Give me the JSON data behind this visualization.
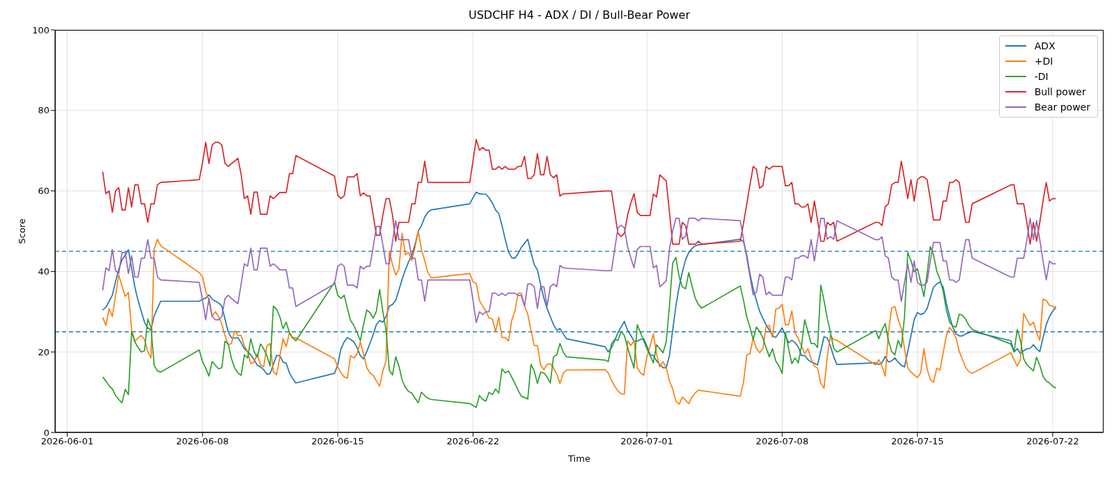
{
  "chart_data": {
    "type": "line",
    "title": "USDCHF H4 - ADX / DI / Bull-Bear Power",
    "xlabel": "Time",
    "ylabel": "Score",
    "x": [
      "2026-06-02T20:00",
      "2026-06-03T00:00",
      "2026-06-03T04:00",
      "2026-06-03T08:00",
      "2026-06-03T12:00",
      "2026-06-03T16:00",
      "2026-06-03T20:00",
      "2026-06-04T00:00",
      "2026-06-04T04:00",
      "2026-06-04T08:00",
      "2026-06-04T12:00",
      "2026-06-04T16:00",
      "2026-06-04T20:00",
      "2026-06-05T00:00",
      "2026-06-05T04:00",
      "2026-06-05T08:00",
      "2026-06-05T12:00",
      "2026-06-05T16:00",
      "2026-06-05T20:00",
      "2026-06-07T20:00",
      "2026-06-08T00:00",
      "2026-06-08T04:00",
      "2026-06-08T08:00",
      "2026-06-08T12:00",
      "2026-06-08T16:00",
      "2026-06-08T20:00",
      "2026-06-09T00:00",
      "2026-06-09T04:00",
      "2026-06-09T08:00",
      "2026-06-09T12:00",
      "2026-06-09T16:00",
      "2026-06-09T20:00",
      "2026-06-10T00:00",
      "2026-06-10T04:00",
      "2026-06-10T08:00",
      "2026-06-10T12:00",
      "2026-06-10T16:00",
      "2026-06-10T20:00",
      "2026-06-11T00:00",
      "2026-06-11T04:00",
      "2026-06-11T08:00",
      "2026-06-11T12:00",
      "2026-06-11T16:00",
      "2026-06-11T20:00",
      "2026-06-12T00:00",
      "2026-06-12T04:00",
      "2026-06-12T08:00",
      "2026-06-12T12:00",
      "2026-06-12T16:00",
      "2026-06-12T20:00",
      "2026-06-14T20:00",
      "2026-06-15T00:00",
      "2026-06-15T04:00",
      "2026-06-15T08:00",
      "2026-06-15T12:00",
      "2026-06-15T16:00",
      "2026-06-15T20:00",
      "2026-06-16T00:00",
      "2026-06-16T04:00",
      "2026-06-16T08:00",
      "2026-06-16T12:00",
      "2026-06-16T16:00",
      "2026-06-16T20:00",
      "2026-06-17T00:00",
      "2026-06-17T04:00",
      "2026-06-17T08:00",
      "2026-06-17T12:00",
      "2026-06-17T16:00",
      "2026-06-17T20:00",
      "2026-06-18T00:00",
      "2026-06-18T04:00",
      "2026-06-18T08:00",
      "2026-06-18T12:00",
      "2026-06-18T16:00",
      "2026-06-18T20:00",
      "2026-06-19T00:00",
      "2026-06-19T04:00",
      "2026-06-19T08:00",
      "2026-06-19T12:00",
      "2026-06-19T16:00",
      "2026-06-19T20:00",
      "2026-06-21T20:00",
      "2026-06-22T00:00",
      "2026-06-22T04:00",
      "2026-06-22T08:00",
      "2026-06-22T12:00",
      "2026-06-22T16:00",
      "2026-06-22T20:00",
      "2026-06-23T00:00",
      "2026-06-23T04:00",
      "2026-06-23T08:00",
      "2026-06-23T12:00",
      "2026-06-23T16:00",
      "2026-06-23T20:00",
      "2026-06-24T00:00",
      "2026-06-24T04:00",
      "2026-06-24T08:00",
      "2026-06-24T12:00",
      "2026-06-24T16:00",
      "2026-06-24T20:00",
      "2026-06-25T00:00",
      "2026-06-25T04:00",
      "2026-06-25T08:00",
      "2026-06-25T12:00",
      "2026-06-25T16:00",
      "2026-06-25T20:00",
      "2026-06-26T00:00",
      "2026-06-26T04:00",
      "2026-06-26T08:00",
      "2026-06-26T12:00",
      "2026-06-26T16:00",
      "2026-06-26T20:00",
      "2026-06-28T20:00",
      "2026-06-29T00:00",
      "2026-06-29T04:00",
      "2026-06-29T08:00",
      "2026-06-29T12:00",
      "2026-06-29T16:00",
      "2026-06-29T20:00",
      "2026-06-30T00:00",
      "2026-06-30T04:00",
      "2026-06-30T08:00",
      "2026-06-30T12:00",
      "2026-06-30T16:00",
      "2026-06-30T20:00",
      "2026-07-01T00:00",
      "2026-07-01T04:00",
      "2026-07-01T08:00",
      "2026-07-01T12:00",
      "2026-07-01T16:00",
      "2026-07-01T20:00",
      "2026-07-02T00:00",
      "2026-07-02T04:00",
      "2026-07-02T08:00",
      "2026-07-02T12:00",
      "2026-07-02T16:00",
      "2026-07-02T20:00",
      "2026-07-03T00:00",
      "2026-07-03T04:00",
      "2026-07-03T08:00",
      "2026-07-03T12:00",
      "2026-07-03T16:00",
      "2026-07-03T20:00",
      "2026-07-05T20:00",
      "2026-07-06T00:00",
      "2026-07-06T04:00",
      "2026-07-06T08:00",
      "2026-07-06T12:00",
      "2026-07-06T16:00",
      "2026-07-06T20:00",
      "2026-07-07T00:00",
      "2026-07-07T04:00",
      "2026-07-07T08:00",
      "2026-07-07T12:00",
      "2026-07-07T16:00",
      "2026-07-07T20:00",
      "2026-07-08T00:00",
      "2026-07-08T04:00",
      "2026-07-08T08:00",
      "2026-07-08T12:00",
      "2026-07-08T16:00",
      "2026-07-08T20:00",
      "2026-07-09T00:00",
      "2026-07-09T04:00",
      "2026-07-09T08:00",
      "2026-07-09T12:00",
      "2026-07-09T16:00",
      "2026-07-09T20:00",
      "2026-07-10T00:00",
      "2026-07-10T04:00",
      "2026-07-10T08:00",
      "2026-07-10T12:00",
      "2026-07-10T16:00",
      "2026-07-10T20:00",
      "2026-07-12T20:00",
      "2026-07-13T00:00",
      "2026-07-13T04:00",
      "2026-07-13T08:00",
      "2026-07-13T12:00",
      "2026-07-13T16:00",
      "2026-07-13T20:00",
      "2026-07-14T00:00",
      "2026-07-14T04:00",
      "2026-07-14T08:00",
      "2026-07-14T12:00",
      "2026-07-14T16:00",
      "2026-07-14T20:00",
      "2026-07-15T00:00",
      "2026-07-15T04:00",
      "2026-07-15T08:00",
      "2026-07-15T12:00",
      "2026-07-15T16:00",
      "2026-07-15T20:00",
      "2026-07-16T00:00",
      "2026-07-16T04:00",
      "2026-07-16T08:00",
      "2026-07-16T12:00",
      "2026-07-16T16:00",
      "2026-07-16T20:00",
      "2026-07-17T00:00",
      "2026-07-17T04:00",
      "2026-07-17T08:00",
      "2026-07-17T12:00",
      "2026-07-17T16:00",
      "2026-07-17T20:00",
      "2026-07-19T20:00",
      "2026-07-20T00:00",
      "2026-07-20T04:00",
      "2026-07-20T08:00",
      "2026-07-20T12:00",
      "2026-07-20T16:00",
      "2026-07-20T20:00",
      "2026-07-21T00:00",
      "2026-07-21T04:00",
      "2026-07-21T08:00",
      "2026-07-21T12:00",
      "2026-07-21T16:00",
      "2026-07-21T20:00",
      "2026-07-22T00:00",
      "2026-07-22T04:00"
    ],
    "series": [
      {
        "name": "ADX",
        "color": "#1f77b4",
        "values": [
          30.4,
          31.1,
          32.6,
          34.1,
          37.5,
          40.5,
          42.9,
          44.0,
          45.4,
          40.7,
          36.1,
          32.8,
          30.0,
          27.4,
          26.0,
          25.4,
          29.0,
          30.8,
          32.6,
          32.6,
          33.1,
          33.4,
          34.2,
          33.1,
          32.6,
          32.2,
          31.4,
          28.1,
          24.9,
          23.5,
          23.4,
          23.6,
          22.3,
          20.8,
          20.0,
          19.3,
          18.1,
          16.7,
          16.3,
          15.6,
          14.5,
          14.6,
          16.9,
          19.1,
          19.1,
          17.5,
          17.2,
          14.8,
          13.4,
          12.3,
          14.7,
          16.8,
          20.8,
          22.5,
          23.6,
          23.1,
          22.5,
          21.1,
          19.1,
          18.3,
          20.1,
          22.1,
          24.3,
          26.8,
          27.8,
          27.4,
          28.8,
          31.4,
          31.8,
          32.8,
          35.4,
          38.1,
          40.4,
          42.4,
          44.1,
          46.7,
          50.0,
          51.4,
          53.5,
          54.7,
          55.3,
          56.8,
          58.3,
          59.7,
          59.3,
          59.2,
          59.2,
          58.3,
          57.0,
          55.3,
          54.4,
          51.4,
          48.0,
          44.9,
          43.4,
          43.3,
          44.4,
          46.0,
          47.0,
          48.0,
          44.7,
          41.7,
          40.4,
          36.7,
          33.4,
          30.8,
          28.8,
          26.8,
          25.4,
          25.8,
          24.5,
          23.3,
          21.3,
          20.0,
          21.1,
          22.8,
          24.8,
          26.2,
          27.6,
          25.4,
          24.1,
          22.7,
          22.7,
          23.1,
          23.3,
          21.5,
          19.3,
          19.1,
          17.8,
          16.9,
          16.1,
          16.1,
          19.1,
          25.4,
          31.4,
          36.1,
          39.9,
          42.9,
          44.7,
          45.7,
          46.4,
          46.6,
          46.7,
          48.0,
          47.4,
          44.1,
          39.4,
          35.7,
          32.8,
          30.1,
          28.4,
          26.8,
          25.4,
          24.1,
          23.6,
          24.8,
          26.0,
          24.1,
          22.3,
          22.9,
          22.3,
          21.3,
          19.1,
          19.1,
          18.1,
          17.5,
          17.2,
          16.8,
          20.3,
          23.8,
          23.5,
          21.5,
          18.8,
          16.9,
          17.3,
          16.9,
          17.3,
          18.9,
          17.5,
          17.8,
          18.5,
          17.5,
          16.7,
          16.3,
          20.1,
          24.1,
          28.1,
          29.8,
          29.3,
          29.6,
          30.8,
          33.4,
          36.1,
          36.9,
          37.4,
          36.1,
          32.1,
          28.8,
          26.1,
          24.5,
          24.0,
          24.0,
          24.5,
          24.8,
          25.1,
          22.8,
          20.0,
          20.8,
          19.6,
          20.3,
          20.8,
          20.9,
          21.8,
          20.8,
          20.1,
          23.5,
          26.8,
          28.8,
          30.1,
          31.3
        ]
      },
      {
        "name": "+DI",
        "color": "#ff7f0e",
        "values": [
          28.6,
          26.6,
          30.8,
          28.8,
          34.1,
          39.1,
          36.4,
          33.8,
          34.8,
          25.4,
          22.7,
          23.5,
          24.1,
          23.1,
          20.1,
          18.5,
          45.5,
          48.0,
          46.4,
          39.7,
          38.7,
          35.1,
          32.8,
          28.8,
          30.0,
          28.8,
          26.9,
          24.1,
          21.8,
          22.1,
          25.3,
          24.1,
          24.1,
          21.5,
          20.1,
          17.1,
          17.5,
          19.5,
          16.8,
          16.3,
          21.5,
          22.1,
          15.1,
          14.3,
          18.7,
          23.3,
          21.3,
          24.8,
          23.5,
          23.5,
          18.3,
          16.3,
          14.8,
          13.8,
          13.5,
          19.1,
          18.5,
          19.5,
          22.5,
          19.5,
          16.1,
          14.8,
          14.2,
          12.8,
          11.5,
          15.3,
          17.8,
          45.0,
          41.7,
          39.1,
          40.7,
          49.5,
          44.2,
          44.7,
          42.7,
          46.0,
          50.0,
          45.4,
          42.7,
          39.7,
          38.4,
          39.5,
          37.4,
          37.1,
          32.8,
          31.4,
          30.1,
          28.4,
          28.2,
          25.1,
          28.6,
          23.6,
          23.6,
          22.7,
          27.8,
          30.1,
          34.6,
          34.6,
          31.4,
          29.4,
          25.4,
          21.6,
          21.6,
          16.8,
          15.6,
          16.9,
          17.1,
          16.1,
          14.5,
          12.2,
          14.7,
          15.5,
          15.6,
          14.8,
          13.0,
          11.5,
          10.3,
          9.6,
          9.5,
          22.8,
          21.6,
          22.8,
          16.1,
          14.8,
          14.2,
          18.8,
          21.5,
          24.5,
          19.5,
          16.3,
          17.6,
          16.1,
          12.8,
          10.8,
          7.8,
          7.0,
          8.8,
          8.0,
          7.2,
          8.8,
          9.8,
          10.5,
          10.4,
          9.0,
          12.5,
          19.3,
          19.6,
          23.5,
          20.9,
          19.8,
          20.8,
          26.4,
          26.6,
          23.6,
          30.6,
          30.9,
          31.8,
          26.8,
          26.8,
          30.2,
          24.8,
          23.3,
          21.5,
          19.6,
          20.8,
          18.3,
          16.5,
          16.0,
          12.2,
          11.0,
          18.7,
          24.1,
          23.1,
          22.9,
          16.8,
          18.1,
          16.5,
          14.0,
          24.8,
          30.9,
          31.3,
          28.1,
          25.8,
          20.9,
          16.1,
          15.0,
          14.3,
          13.6,
          14.8,
          20.8,
          15.8,
          13.2,
          12.5,
          16.0,
          15.5,
          19.8,
          24.1,
          26.1,
          25.1,
          23.5,
          20.1,
          18.1,
          16.1,
          15.1,
          14.7,
          19.8,
          18.1,
          16.5,
          18.1,
          29.6,
          28.0,
          26.6,
          27.4,
          24.8,
          22.9,
          33.1,
          32.8,
          31.6,
          31.4,
          30.6
        ]
      },
      {
        "name": "-DI",
        "color": "#2ca02c",
        "values": [
          13.8,
          12.8,
          11.6,
          10.8,
          9.2,
          8.2,
          7.4,
          10.7,
          9.4,
          25.1,
          22.5,
          21.1,
          20.0,
          20.3,
          28.2,
          26.1,
          16.7,
          15.3,
          15.0,
          20.5,
          17.6,
          16.0,
          14.0,
          17.6,
          16.7,
          15.8,
          16.1,
          22.7,
          22.0,
          18.3,
          16.0,
          14.8,
          14.2,
          19.3,
          18.5,
          23.3,
          20.1,
          18.7,
          22.0,
          20.8,
          19.1,
          16.5,
          31.4,
          30.6,
          28.8,
          25.8,
          27.4,
          24.8,
          23.5,
          22.8,
          37.3,
          34.1,
          33.3,
          34.1,
          30.8,
          27.8,
          26.6,
          24.8,
          22.8,
          26.8,
          30.4,
          29.8,
          28.4,
          30.1,
          35.5,
          30.1,
          25.4,
          15.5,
          14.3,
          18.8,
          16.5,
          13.0,
          11.2,
          10.2,
          9.8,
          8.5,
          7.4,
          10.0,
          9.2,
          8.5,
          8.2,
          7.2,
          6.7,
          6.2,
          9.2,
          8.2,
          7.8,
          10.0,
          9.4,
          10.8,
          9.8,
          15.8,
          14.8,
          15.3,
          13.8,
          12.2,
          10.5,
          9.0,
          8.7,
          8.3,
          16.9,
          15.3,
          12.2,
          15.0,
          14.8,
          13.8,
          12.3,
          18.8,
          19.3,
          22.1,
          20.0,
          18.8,
          18.0,
          17.6,
          22.0,
          23.1,
          22.9,
          25.1,
          24.1,
          21.1,
          18.5,
          16.0,
          26.8,
          24.8,
          22.8,
          20.8,
          19.1,
          17.3,
          21.8,
          20.8,
          19.8,
          22.5,
          31.4,
          42.1,
          43.5,
          38.7,
          36.2,
          35.7,
          39.7,
          36.4,
          33.4,
          31.8,
          30.9,
          36.4,
          32.8,
          28.8,
          26.1,
          23.1,
          26.2,
          25.1,
          23.5,
          21.1,
          18.8,
          20.8,
          17.8,
          16.5,
          14.7,
          24.9,
          20.8,
          17.1,
          18.5,
          17.3,
          21.5,
          28.0,
          25.1,
          22.1,
          22.1,
          21.1,
          36.6,
          32.8,
          28.4,
          24.8,
          20.9,
          20.0,
          25.3,
          23.3,
          25.4,
          27.1,
          22.8,
          20.1,
          19.3,
          22.9,
          21.1,
          28.8,
          44.7,
          42.7,
          39.9,
          40.7,
          37.4,
          33.8,
          39.4,
          46.2,
          44.1,
          40.1,
          38.1,
          35.1,
          30.4,
          27.4,
          26.4,
          26.2,
          29.4,
          29.1,
          28.1,
          26.6,
          25.6,
          22.0,
          20.0,
          25.6,
          22.8,
          18.3,
          16.8,
          16.1,
          15.3,
          18.7,
          16.7,
          14.0,
          12.8,
          12.3,
          11.5,
          11.0
        ]
      },
      {
        "name": "Bull power",
        "color": "#d62728",
        "values": [
          64.8,
          59.3,
          60.0,
          54.7,
          60.0,
          60.8,
          55.3,
          55.3,
          60.8,
          56.0,
          61.5,
          61.5,
          56.8,
          56.8,
          52.2,
          56.8,
          56.8,
          61.5,
          62.1,
          62.8,
          67.0,
          72.1,
          66.8,
          71.4,
          72.1,
          72.1,
          71.4,
          66.8,
          66.1,
          66.8,
          67.4,
          68.1,
          64.1,
          58.1,
          58.8,
          54.2,
          59.7,
          59.7,
          54.2,
          54.2,
          54.2,
          58.8,
          58.1,
          58.8,
          59.6,
          59.6,
          59.6,
          64.3,
          64.3,
          68.8,
          63.7,
          59.0,
          58.1,
          58.8,
          63.5,
          63.5,
          63.5,
          64.3,
          58.8,
          59.5,
          58.8,
          58.8,
          54.0,
          49.0,
          49.0,
          54.0,
          58.1,
          58.1,
          54.0,
          47.5,
          52.2,
          52.2,
          52.2,
          52.2,
          56.8,
          56.8,
          62.1,
          62.1,
          67.4,
          62.1,
          62.1,
          62.1,
          67.5,
          72.8,
          70.1,
          70.8,
          70.1,
          70.1,
          65.4,
          65.4,
          66.1,
          65.4,
          66.1,
          65.4,
          65.4,
          65.4,
          66.1,
          66.1,
          68.6,
          63.1,
          63.1,
          64.0,
          69.3,
          64.0,
          64.0,
          68.6,
          64.0,
          63.3,
          64.0,
          58.7,
          59.3,
          59.3,
          60.0,
          60.0,
          60.0,
          54.7,
          49.5,
          48.7,
          49.5,
          54.0,
          57.0,
          59.3,
          54.7,
          53.9,
          53.9,
          53.9,
          53.9,
          59.2,
          58.5,
          64.0,
          63.2,
          62.5,
          54.7,
          46.8,
          46.8,
          46.8,
          52.2,
          51.4,
          46.8,
          46.8,
          46.8,
          47.5,
          46.8,
          47.5,
          52.0,
          56.7,
          61.5,
          66.1,
          65.4,
          60.7,
          61.3,
          66.1,
          65.4,
          66.1,
          66.1,
          66.1,
          66.1,
          61.3,
          61.3,
          62.1,
          56.8,
          56.8,
          56.0,
          56.0,
          56.8,
          52.2,
          57.5,
          52.7,
          47.5,
          47.5,
          52.2,
          51.5,
          52.2,
          47.5,
          52.2,
          52.2,
          51.4,
          56.1,
          56.8,
          61.5,
          62.1,
          62.1,
          67.4,
          62.8,
          58.1,
          62.8,
          57.5,
          62.8,
          63.5,
          63.5,
          62.8,
          58.0,
          52.8,
          52.8,
          52.8,
          57.5,
          57.5,
          62.1,
          62.1,
          62.8,
          62.1,
          56.8,
          52.2,
          52.2,
          56.8,
          61.5,
          61.5,
          56.8,
          56.8,
          56.8,
          52.0,
          46.8,
          52.2,
          47.5,
          52.2,
          57.5,
          62.1,
          57.5,
          58.1,
          58.1
        ]
      },
      {
        "name": "Bear power",
        "color": "#9467bd",
        "values": [
          35.3,
          40.9,
          40.2,
          45.4,
          40.2,
          39.5,
          44.7,
          44.7,
          39.5,
          43.9,
          38.6,
          38.6,
          43.3,
          43.3,
          47.9,
          43.3,
          43.3,
          38.7,
          37.9,
          37.3,
          32.8,
          28.0,
          33.3,
          28.8,
          28.0,
          28.0,
          28.8,
          33.3,
          34.1,
          33.3,
          32.6,
          32.0,
          36.9,
          41.9,
          41.3,
          45.8,
          40.4,
          40.4,
          45.8,
          45.8,
          45.8,
          41.3,
          41.9,
          41.3,
          40.4,
          40.4,
          40.4,
          35.9,
          35.9,
          31.3,
          36.9,
          41.3,
          41.9,
          41.3,
          36.6,
          36.6,
          36.6,
          35.9,
          41.3,
          40.6,
          41.3,
          41.3,
          46.0,
          51.2,
          51.2,
          46.6,
          41.9,
          41.9,
          47.4,
          52.6,
          47.9,
          47.9,
          47.9,
          47.9,
          43.3,
          43.3,
          37.9,
          37.9,
          32.6,
          37.9,
          37.9,
          37.9,
          32.8,
          27.3,
          30.0,
          29.3,
          30.0,
          30.0,
          34.6,
          34.6,
          34.0,
          34.6,
          34.0,
          34.6,
          34.6,
          34.6,
          34.0,
          34.0,
          31.4,
          36.9,
          36.9,
          36.2,
          30.8,
          36.2,
          36.2,
          31.4,
          36.2,
          36.9,
          36.2,
          41.5,
          40.9,
          40.8,
          40.2,
          40.2,
          40.2,
          45.5,
          50.8,
          51.5,
          50.8,
          46.2,
          43.4,
          40.9,
          45.5,
          46.2,
          46.2,
          46.2,
          46.2,
          40.9,
          41.5,
          36.2,
          36.9,
          37.7,
          45.5,
          50.0,
          53.2,
          53.2,
          48.0,
          48.8,
          53.2,
          53.2,
          53.2,
          52.6,
          53.2,
          52.6,
          48.0,
          43.4,
          38.8,
          34.2,
          34.9,
          39.3,
          38.6,
          34.2,
          34.9,
          34.1,
          34.1,
          34.1,
          34.1,
          38.6,
          38.6,
          37.9,
          43.3,
          43.3,
          43.9,
          43.9,
          43.3,
          47.9,
          42.6,
          47.9,
          53.2,
          53.2,
          48.0,
          48.7,
          48.0,
          52.6,
          47.9,
          47.9,
          48.6,
          43.9,
          43.3,
          38.6,
          37.9,
          37.9,
          32.6,
          37.3,
          41.9,
          37.3,
          42.6,
          37.3,
          36.6,
          36.6,
          37.3,
          42.6,
          47.2,
          47.2,
          47.2,
          42.6,
          42.6,
          37.9,
          37.9,
          37.3,
          37.9,
          43.3,
          47.9,
          47.9,
          43.3,
          38.6,
          38.6,
          43.3,
          43.3,
          43.3,
          47.9,
          53.2,
          47.9,
          52.6,
          47.9,
          42.6,
          37.9,
          42.6,
          41.9,
          41.9
        ]
      }
    ],
    "xlim": [
      "2026-05-31T08:48",
      "2026-07-24T15:12"
    ],
    "xticks": [
      "2026-06-01",
      "2026-06-08",
      "2026-06-15",
      "2026-06-22",
      "2026-07-01",
      "2026-07-08",
      "2026-07-15",
      "2026-07-22"
    ],
    "ylim": [
      0,
      100
    ],
    "yticks": [
      0,
      20,
      40,
      60,
      80,
      100
    ],
    "ref_lines": [
      {
        "axis": "y",
        "value": 45,
        "color": "#1f77b4",
        "line_style": "dashed"
      },
      {
        "axis": "y",
        "value": 25,
        "color": "#1f77b4",
        "line_style": "dashed"
      }
    ],
    "grid": true,
    "legend": "top right"
  }
}
